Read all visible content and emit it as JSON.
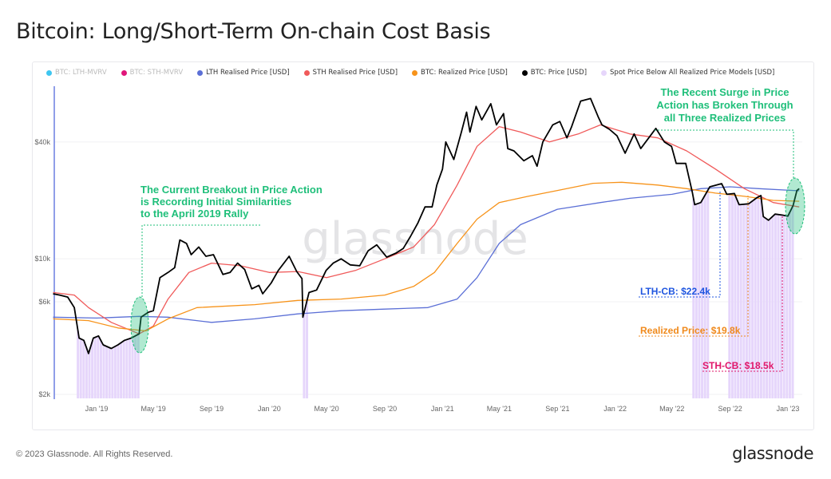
{
  "title": "Bitcoin: Long/Short-Term On-chain Cost Basis",
  "footer": "© 2023 Glassnode. All Rights Reserved.",
  "logo": "glassnode",
  "watermark": "glassnode",
  "legend": [
    {
      "label": "BTC: LTH-MVRV",
      "color": "#3ec6f0",
      "disabled": true
    },
    {
      "label": "BTC: STH-MVRV",
      "color": "#e0167a",
      "disabled": true
    },
    {
      "label": "LTH Realised Price [USD]",
      "color": "#5b6fd6",
      "disabled": false
    },
    {
      "label": "STH Realised Price [USD]",
      "color": "#f05a5a",
      "disabled": false
    },
    {
      "label": "BTC: Realized Price [USD]",
      "color": "#f7931a",
      "disabled": false
    },
    {
      "label": "BTC: Price [USD]",
      "color": "#000000",
      "disabled": false
    },
    {
      "label": "Spot Price Below All Realized Price Models [USD]",
      "color": "#e6d6fb",
      "disabled": false
    }
  ],
  "annotations": {
    "left": [
      "The Current Breakout in Price Action",
      "is Recording Initial Similarities",
      "to the April 2019 Rally"
    ],
    "right": [
      "The Recent Surge in Price",
      "Action has Broken Through",
      "all Three Realized Prices"
    ],
    "lth_cb": "LTH-CB: $22.4k",
    "realized": "Realized Price: $19.8k",
    "sth_cb": "STH-CB: $18.5k",
    "green": "#1fbf7a",
    "blue": "#1f56e0",
    "orange": "#f08a1c",
    "pink": "#e0166a"
  },
  "chart_data": {
    "type": "line",
    "y_scale": "log",
    "ylim": [
      2000,
      75000
    ],
    "xlim": [
      "2018-10-01",
      "2023-01-31"
    ],
    "yticks": [
      {
        "v": 2000,
        "label": "$2k"
      },
      {
        "v": 6000,
        "label": "$6k"
      },
      {
        "v": 10000,
        "label": "$10k"
      },
      {
        "v": 40000,
        "label": "$40k"
      }
    ],
    "xticks": [
      {
        "d": "2019-01-01",
        "label": "Jan '19"
      },
      {
        "d": "2019-05-01",
        "label": "May '19"
      },
      {
        "d": "2019-09-01",
        "label": "Sep '19"
      },
      {
        "d": "2020-01-01",
        "label": "Jan '20"
      },
      {
        "d": "2020-05-01",
        "label": "May '20"
      },
      {
        "d": "2020-09-01",
        "label": "Sep '20"
      },
      {
        "d": "2021-01-01",
        "label": "Jan '21"
      },
      {
        "d": "2021-05-01",
        "label": "May '21"
      },
      {
        "d": "2021-09-01",
        "label": "Sep '21"
      },
      {
        "d": "2022-01-01",
        "label": "Jan '22"
      },
      {
        "d": "2022-05-01",
        "label": "May '22"
      },
      {
        "d": "2022-09-01",
        "label": "Sep '22"
      },
      {
        "d": "2023-01-01",
        "label": "Jan '23"
      }
    ],
    "shaded_ranges": [
      [
        "2018-11-20",
        "2019-04-01"
      ],
      [
        "2020-03-12",
        "2020-03-20"
      ],
      [
        "2022-06-13",
        "2022-07-15"
      ],
      [
        "2022-08-28",
        "2023-01-12"
      ]
    ],
    "series": [
      {
        "name": "LTH Realised Price [USD]",
        "color": "#5b6fd6",
        "points": [
          [
            "2018-10-01",
            5000
          ],
          [
            "2019-01-01",
            4950
          ],
          [
            "2019-04-01",
            5050
          ],
          [
            "2019-06-01",
            5000
          ],
          [
            "2019-09-01",
            4700
          ],
          [
            "2019-12-01",
            4900
          ],
          [
            "2020-03-01",
            5200
          ],
          [
            "2020-06-01",
            5400
          ],
          [
            "2020-09-01",
            5500
          ],
          [
            "2020-12-01",
            5600
          ],
          [
            "2021-02-01",
            6200
          ],
          [
            "2021-03-15",
            8000
          ],
          [
            "2021-05-01",
            12000
          ],
          [
            "2021-06-15",
            15000
          ],
          [
            "2021-09-01",
            18000
          ],
          [
            "2021-12-01",
            19500
          ],
          [
            "2022-02-01",
            20500
          ],
          [
            "2022-05-01",
            21500
          ],
          [
            "2022-07-01",
            23000
          ],
          [
            "2022-09-01",
            23500
          ],
          [
            "2022-11-01",
            23000
          ],
          [
            "2023-01-25",
            22400
          ]
        ]
      },
      {
        "name": "STH Realised Price [USD]",
        "color": "#f05a5a",
        "points": [
          [
            "2018-10-01",
            6700
          ],
          [
            "2018-11-15",
            6500
          ],
          [
            "2018-12-15",
            5600
          ],
          [
            "2019-02-01",
            4700
          ],
          [
            "2019-04-01",
            4100
          ],
          [
            "2019-05-01",
            4500
          ],
          [
            "2019-06-01",
            6200
          ],
          [
            "2019-07-15",
            8500
          ],
          [
            "2019-09-01",
            9500
          ],
          [
            "2019-11-01",
            9200
          ],
          [
            "2020-01-01",
            8500
          ],
          [
            "2020-03-01",
            8600
          ],
          [
            "2020-05-01",
            8000
          ],
          [
            "2020-07-01",
            8700
          ],
          [
            "2020-09-01",
            10000
          ],
          [
            "2020-11-01",
            11500
          ],
          [
            "2020-12-15",
            15000
          ],
          [
            "2021-02-01",
            24000
          ],
          [
            "2021-03-15",
            38000
          ],
          [
            "2021-05-01",
            48000
          ],
          [
            "2021-06-15",
            45000
          ],
          [
            "2021-08-15",
            40000
          ],
          [
            "2021-10-15",
            44000
          ],
          [
            "2021-12-01",
            49000
          ],
          [
            "2022-02-01",
            44000
          ],
          [
            "2022-04-01",
            42000
          ],
          [
            "2022-06-01",
            36000
          ],
          [
            "2022-08-01",
            29000
          ],
          [
            "2022-10-01",
            23000
          ],
          [
            "2022-12-01",
            19500
          ],
          [
            "2023-01-25",
            18500
          ]
        ]
      },
      {
        "name": "BTC: Realized Price [USD]",
        "color": "#f7931a",
        "points": [
          [
            "2018-10-01",
            4900
          ],
          [
            "2018-12-15",
            4800
          ],
          [
            "2019-02-15",
            4400
          ],
          [
            "2019-04-15",
            4250
          ],
          [
            "2019-06-01",
            4900
          ],
          [
            "2019-08-01",
            5600
          ],
          [
            "2019-12-01",
            5800
          ],
          [
            "2020-03-01",
            6100
          ],
          [
            "2020-06-01",
            6200
          ],
          [
            "2020-09-01",
            6500
          ],
          [
            "2020-11-01",
            7200
          ],
          [
            "2020-12-15",
            8500
          ],
          [
            "2021-02-01",
            12000
          ],
          [
            "2021-03-15",
            16000
          ],
          [
            "2021-05-01",
            19500
          ],
          [
            "2021-07-01",
            21000
          ],
          [
            "2021-09-01",
            22500
          ],
          [
            "2021-11-15",
            24500
          ],
          [
            "2022-01-15",
            24800
          ],
          [
            "2022-04-01",
            24000
          ],
          [
            "2022-06-01",
            23000
          ],
          [
            "2022-08-01",
            21800
          ],
          [
            "2022-10-01",
            21000
          ],
          [
            "2022-12-01",
            20000
          ],
          [
            "2023-01-25",
            19800
          ]
        ]
      },
      {
        "name": "BTC: Price [USD]",
        "color": "#000000",
        "points": [
          [
            "2018-10-01",
            6600
          ],
          [
            "2018-10-15",
            6500
          ],
          [
            "2018-11-01",
            6350
          ],
          [
            "2018-11-15",
            5600
          ],
          [
            "2018-11-25",
            3900
          ],
          [
            "2018-12-05",
            3800
          ],
          [
            "2018-12-15",
            3250
          ],
          [
            "2018-12-25",
            3900
          ],
          [
            "2019-01-05",
            4000
          ],
          [
            "2019-01-15",
            3600
          ],
          [
            "2019-02-01",
            3450
          ],
          [
            "2019-02-15",
            3600
          ],
          [
            "2019-03-01",
            3800
          ],
          [
            "2019-03-15",
            3900
          ],
          [
            "2019-04-01",
            4100
          ],
          [
            "2019-04-05",
            5000
          ],
          [
            "2019-04-20",
            5300
          ],
          [
            "2019-05-01",
            5400
          ],
          [
            "2019-05-15",
            8000
          ],
          [
            "2019-06-01",
            8500
          ],
          [
            "2019-06-15",
            9000
          ],
          [
            "2019-06-26",
            12500
          ],
          [
            "2019-07-10",
            12000
          ],
          [
            "2019-07-20",
            10500
          ],
          [
            "2019-08-05",
            11500
          ],
          [
            "2019-08-20",
            10300
          ],
          [
            "2019-09-05",
            10500
          ],
          [
            "2019-09-25",
            8300
          ],
          [
            "2019-10-10",
            8500
          ],
          [
            "2019-10-26",
            9500
          ],
          [
            "2019-11-10",
            8800
          ],
          [
            "2019-11-25",
            7000
          ],
          [
            "2019-12-10",
            7300
          ],
          [
            "2019-12-18",
            6600
          ],
          [
            "2020-01-05",
            7500
          ],
          [
            "2020-01-20",
            8700
          ],
          [
            "2020-02-12",
            10300
          ],
          [
            "2020-02-28",
            8600
          ],
          [
            "2020-03-10",
            7900
          ],
          [
            "2020-03-12",
            5000
          ],
          [
            "2020-03-25",
            6700
          ],
          [
            "2020-04-10",
            6900
          ],
          [
            "2020-04-30",
            8700
          ],
          [
            "2020-05-15",
            9500
          ],
          [
            "2020-06-01",
            10000
          ],
          [
            "2020-06-20",
            9300
          ],
          [
            "2020-07-10",
            9200
          ],
          [
            "2020-07-28",
            11000
          ],
          [
            "2020-08-15",
            11800
          ],
          [
            "2020-09-05",
            10200
          ],
          [
            "2020-09-25",
            10700
          ],
          [
            "2020-10-10",
            11300
          ],
          [
            "2020-10-25",
            13000
          ],
          [
            "2020-11-10",
            15300
          ],
          [
            "2020-11-25",
            18500
          ],
          [
            "2020-12-10",
            18500
          ],
          [
            "2020-12-20",
            24000
          ],
          [
            "2021-01-01",
            29000
          ],
          [
            "2021-01-08",
            40000
          ],
          [
            "2021-01-25",
            32500
          ],
          [
            "2021-02-10",
            45000
          ],
          [
            "2021-02-21",
            57000
          ],
          [
            "2021-02-28",
            45000
          ],
          [
            "2021-03-13",
            61000
          ],
          [
            "2021-03-25",
            52000
          ],
          [
            "2021-04-13",
            63000
          ],
          [
            "2021-04-25",
            49000
          ],
          [
            "2021-05-10",
            56000
          ],
          [
            "2021-05-19",
            37000
          ],
          [
            "2021-06-01",
            36000
          ],
          [
            "2021-06-22",
            32000
          ],
          [
            "2021-07-10",
            34000
          ],
          [
            "2021-07-20",
            30000
          ],
          [
            "2021-08-01",
            40000
          ],
          [
            "2021-08-22",
            49000
          ],
          [
            "2021-09-06",
            51000
          ],
          [
            "2021-09-21",
            42000
          ],
          [
            "2021-10-01",
            48000
          ],
          [
            "2021-10-20",
            65000
          ],
          [
            "2021-11-10",
            67000
          ],
          [
            "2021-11-26",
            54000
          ],
          [
            "2021-12-04",
            49000
          ],
          [
            "2021-12-20",
            46500
          ],
          [
            "2022-01-05",
            43000
          ],
          [
            "2022-01-22",
            35000
          ],
          [
            "2022-02-10",
            44000
          ],
          [
            "2022-02-24",
            37000
          ],
          [
            "2022-03-28",
            47000
          ],
          [
            "2022-04-15",
            40000
          ],
          [
            "2022-04-30",
            38000
          ],
          [
            "2022-05-10",
            31000
          ],
          [
            "2022-05-30",
            31000
          ],
          [
            "2022-06-13",
            22000
          ],
          [
            "2022-06-18",
            19000
          ],
          [
            "2022-07-01",
            19500
          ],
          [
            "2022-07-20",
            23500
          ],
          [
            "2022-08-14",
            24400
          ],
          [
            "2022-08-25",
            21500
          ],
          [
            "2022-09-10",
            21700
          ],
          [
            "2022-09-20",
            19000
          ],
          [
            "2022-10-10",
            19200
          ],
          [
            "2022-10-28",
            20700
          ],
          [
            "2022-11-05",
            21200
          ],
          [
            "2022-11-10",
            16500
          ],
          [
            "2022-11-21",
            15800
          ],
          [
            "2022-12-05",
            17000
          ],
          [
            "2022-12-20",
            16800
          ],
          [
            "2023-01-01",
            16600
          ],
          [
            "2023-01-12",
            18800
          ],
          [
            "2023-01-20",
            22500
          ],
          [
            "2023-01-25",
            23000
          ]
        ]
      }
    ]
  }
}
